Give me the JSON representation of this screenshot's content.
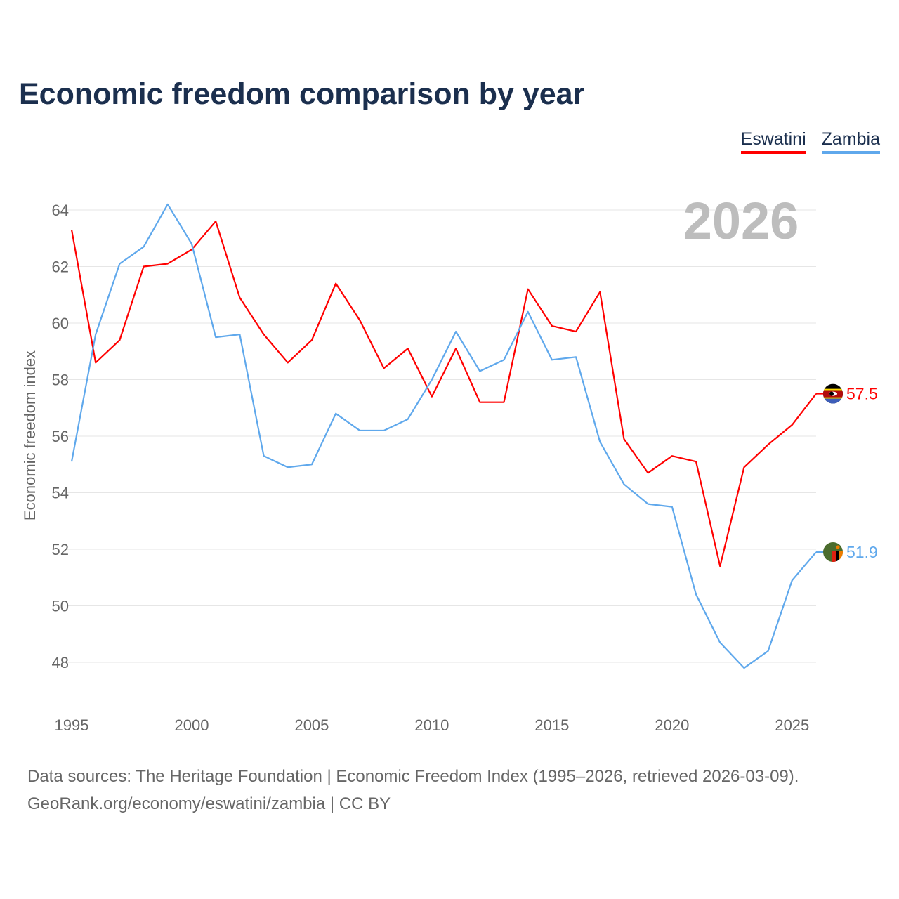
{
  "title": "Economic freedom comparison by year",
  "legend": [
    {
      "name": "Eswatini",
      "color": "#ff0000"
    },
    {
      "name": "Zambia",
      "color": "#5fa8ec"
    }
  ],
  "year_watermark": "2026",
  "footer": {
    "line1": "Data sources: The Heritage Foundation | Economic Freedom Index (1995–2026, retrieved 2026-03-09).",
    "line2": "GeoRank.org/economy/eswatini/zambia | CC BY"
  },
  "chart_data": {
    "type": "line",
    "title": "Economic freedom comparison by year",
    "xlabel": "",
    "ylabel": "Economic freedom index",
    "xlim": [
      1995,
      2026
    ],
    "ylim": [
      46.8,
      64.5
    ],
    "x_ticks": [
      1995,
      2000,
      2005,
      2010,
      2015,
      2020,
      2025
    ],
    "y_ticks": [
      48,
      50,
      52,
      54,
      56,
      58,
      60,
      62,
      64
    ],
    "grid": true,
    "legend_position": "top-right",
    "x": [
      1995,
      1996,
      1997,
      1998,
      1999,
      2000,
      2001,
      2002,
      2003,
      2004,
      2005,
      2006,
      2007,
      2008,
      2009,
      2010,
      2011,
      2012,
      2013,
      2014,
      2015,
      2016,
      2017,
      2018,
      2019,
      2020,
      2021,
      2022,
      2023,
      2024,
      2025,
      2026
    ],
    "series": [
      {
        "name": "Eswatini",
        "color": "#ff0000",
        "end_label": "57.5",
        "values": [
          63.3,
          58.6,
          59.4,
          62.0,
          62.1,
          62.6,
          63.6,
          60.9,
          59.6,
          58.6,
          59.4,
          61.4,
          60.1,
          58.4,
          59.1,
          57.4,
          59.1,
          57.2,
          57.2,
          61.2,
          59.9,
          59.7,
          61.1,
          55.9,
          54.7,
          55.3,
          55.1,
          51.4,
          54.9,
          55.7,
          56.4,
          57.5
        ]
      },
      {
        "name": "Zambia",
        "color": "#5fa8ec",
        "end_label": "51.9",
        "values": [
          55.1,
          59.6,
          62.1,
          62.7,
          64.2,
          62.8,
          59.5,
          59.6,
          55.3,
          54.9,
          55.0,
          56.8,
          56.2,
          56.2,
          56.6,
          58.0,
          59.7,
          58.3,
          58.7,
          60.4,
          58.7,
          58.8,
          55.8,
          54.3,
          53.6,
          53.5,
          50.4,
          48.7,
          47.8,
          48.4,
          50.9,
          51.9
        ]
      }
    ]
  }
}
